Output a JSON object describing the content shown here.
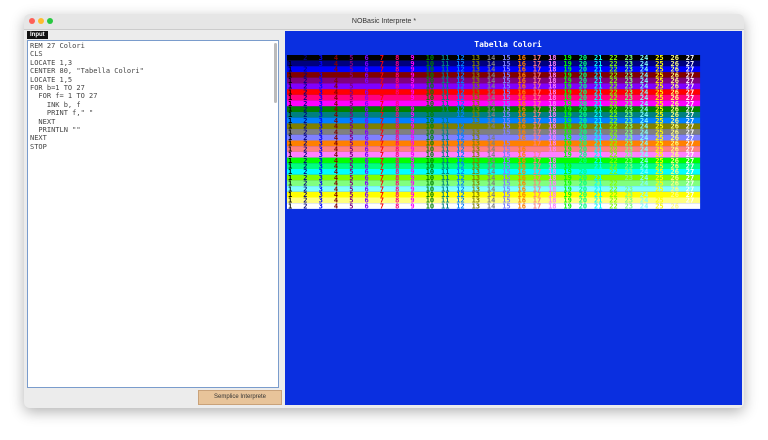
{
  "window": {
    "title": "NOBasic Interprete *"
  },
  "editor": {
    "tab": "Input",
    "lines": [
      "REM 27 Colori",
      "CLS",
      "LOCATE 1,3",
      "CENTER 80, \"Tabella Colori\"",
      "LOCATE 1,5",
      "FOR b=1 TO 27",
      "  FOR f= 1 TO 27",
      "    INK b, f",
      "    PRINT f,\" \"",
      "  NEXT",
      "  PRINTLN \"\"",
      "NEXT",
      "STOP"
    ]
  },
  "button": {
    "label": "Semplice Interprete"
  },
  "output": {
    "title": "Tabella Colori",
    "background": "#0a2fe0",
    "numbers": [
      1,
      2,
      3,
      4,
      5,
      6,
      7,
      8,
      9,
      10,
      11,
      12,
      13,
      14,
      15,
      16,
      17,
      18,
      19,
      20,
      21,
      22,
      23,
      24,
      25,
      26,
      27
    ],
    "palette": [
      "#000000",
      "#000080",
      "#0000ff",
      "#800000",
      "#800080",
      "#8000ff",
      "#ff0000",
      "#ff0080",
      "#ff00ff",
      "#008000",
      "#008080",
      "#0080ff",
      "#808000",
      "#808080",
      "#8080ff",
      "#ff8000",
      "#ff8080",
      "#ff80ff",
      "#00ff00",
      "#00ff80",
      "#00ffff",
      "#80ff00",
      "#80ff80",
      "#80ffff",
      "#ffff00",
      "#ffff80",
      "#ffffff"
    ]
  }
}
